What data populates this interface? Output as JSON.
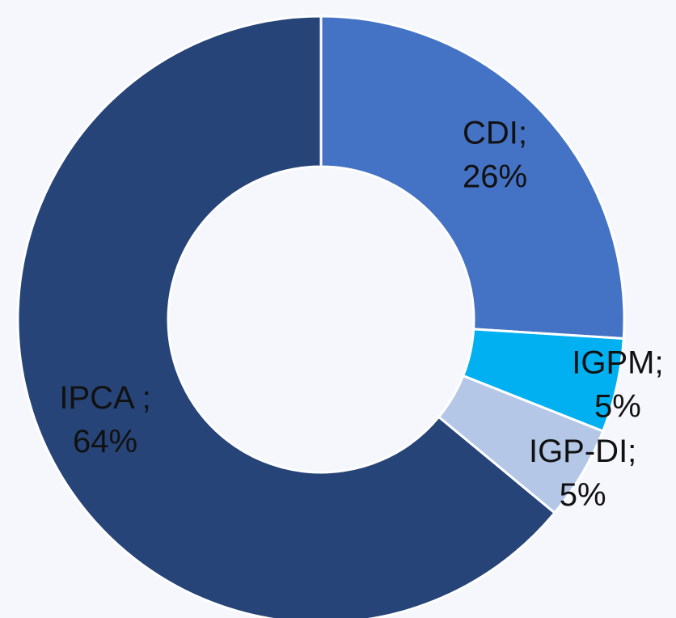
{
  "chart_data": {
    "type": "donut",
    "categories": [
      "CDI;",
      "IGPM;",
      "IGP-DI;",
      "IPCA ;"
    ],
    "values": [
      26,
      5,
      5,
      64
    ],
    "value_labels": [
      "26%",
      "5%",
      "5%",
      "64%"
    ],
    "colors": [
      "#4472c4",
      "#00b0f0",
      "#b4c7e7",
      "#264478"
    ]
  }
}
